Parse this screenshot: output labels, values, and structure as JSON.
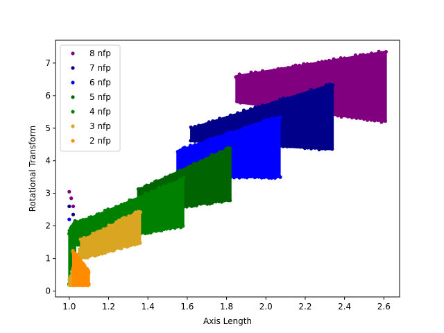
{
  "chart_data": {
    "type": "scatter",
    "title": "",
    "xlabel": "Axis Length",
    "ylabel": "Rotational Transform",
    "xlim": [
      0.93,
      2.68
    ],
    "ylim": [
      -0.18,
      7.7
    ],
    "xticks": [
      1.0,
      1.2,
      1.4,
      1.6,
      1.8,
      2.0,
      2.2,
      2.4,
      2.6
    ],
    "xtick_labels": [
      "1.0",
      "1.2",
      "1.4",
      "1.6",
      "1.8",
      "2.0",
      "2.2",
      "2.4",
      "2.6"
    ],
    "yticks": [
      0,
      1,
      2,
      3,
      4,
      5,
      6,
      7
    ],
    "ytick_labels": [
      "0",
      "1",
      "2",
      "3",
      "4",
      "5",
      "6",
      "7"
    ],
    "grid": false,
    "legend_position": "top-left",
    "series": [
      {
        "name": "8 nfp",
        "color": "#800080",
        "regions": [
          {
            "x0": 1.85,
            "x1": 2.61,
            "ylo0": 5.8,
            "ylo1": 5.2,
            "yhi0": 6.6,
            "yhi1": 7.35
          }
        ],
        "sparse_points": [
          [
            1.0,
            3.05
          ],
          [
            1.01,
            2.85
          ],
          [
            1.02,
            2.6
          ]
        ]
      },
      {
        "name": "7 nfp",
        "color": "#00008b",
        "regions": [
          {
            "x0": 1.62,
            "x1": 2.34,
            "ylo0": 4.6,
            "ylo1": 4.35,
            "yhi0": 5.0,
            "yhi1": 6.35
          }
        ],
        "sparse_points": [
          [
            1.0,
            2.6
          ],
          [
            1.02,
            2.35
          ],
          [
            1.03,
            2.15
          ]
        ]
      },
      {
        "name": "6 nfp",
        "color": "#0000ff",
        "regions": [
          {
            "x0": 1.55,
            "x1": 2.07,
            "ylo0": 3.5,
            "ylo1": 3.5,
            "yhi0": 4.3,
            "yhi1": 5.35
          }
        ],
        "sparse_points": [
          [
            1.0,
            2.2
          ],
          [
            1.02,
            1.9
          ],
          [
            1.04,
            1.75
          ],
          [
            1.05,
            1.95
          ]
        ]
      },
      {
        "name": "5 nfp",
        "color": "#006400",
        "regions": [
          {
            "x0": 1.35,
            "x1": 1.82,
            "ylo0": 2.4,
            "ylo1": 2.8,
            "yhi0": 3.1,
            "yhi1": 4.4
          }
        ],
        "sparse_points": []
      },
      {
        "name": "4 nfp",
        "color": "#008000",
        "regions": [
          {
            "x0": 1.03,
            "x1": 1.58,
            "ylo0": 1.4,
            "ylo1": 2.0,
            "yhi0": 2.05,
            "yhi1": 3.45
          },
          {
            "x0": 1.0,
            "x1": 1.03,
            "ylo0": 0.2,
            "ylo1": 0.3,
            "yhi0": 1.8,
            "yhi1": 2.1
          }
        ],
        "sparse_points": []
      },
      {
        "name": "3 nfp",
        "color": "#daa520",
        "regions": [
          {
            "x0": 1.06,
            "x1": 1.36,
            "ylo0": 1.0,
            "ylo1": 1.5,
            "yhi0": 1.55,
            "yhi1": 2.45
          },
          {
            "x0": 1.0,
            "x1": 1.06,
            "ylo0": 0.2,
            "ylo1": 0.25,
            "yhi0": 0.3,
            "yhi1": 1.35
          }
        ],
        "sparse_points": []
      },
      {
        "name": "2 nfp",
        "color": "#ff8c00",
        "regions": [
          {
            "x0": 1.02,
            "x1": 1.1,
            "ylo0": 0.2,
            "ylo1": 0.2,
            "yhi0": 1.2,
            "yhi1": 0.55
          }
        ],
        "sparse_points": []
      }
    ]
  }
}
